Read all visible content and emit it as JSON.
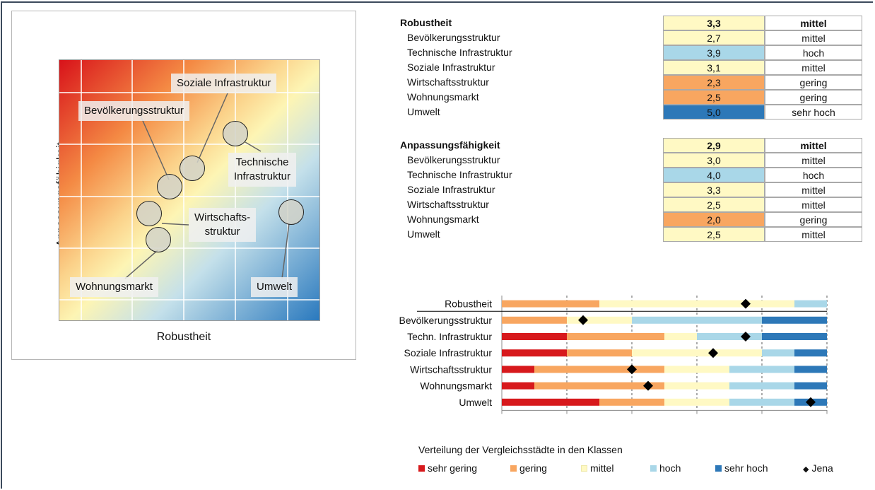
{
  "colors": {
    "sehr_gering": "#d7191c",
    "gering": "#f8a660",
    "mittel": "#fff9c4",
    "hoch": "#a9d7e8",
    "sehr_hoch": "#2d78b8",
    "jena": "#000000"
  },
  "matrix": {
    "xlabel": "Robustheit",
    "ylabel": "Anpassungsfähigkeit",
    "labels": {
      "soziale": "Soziale Infrastruktur",
      "bevoelkerung": "Bevölkerungsstruktur",
      "technische_1": "Technische",
      "technische_2": "Infrastruktur",
      "wirtschaft_1": "Wirtschafts-",
      "wirtschaft_2": "struktur",
      "wohnungsmarkt": "Wohnungsmarkt",
      "umwelt": "Umwelt"
    }
  },
  "table": {
    "robustheit": {
      "title": "Robustheit",
      "value": "3,3",
      "class": "mittel",
      "rows": [
        {
          "label": "Bevölkerungsstruktur",
          "value": "2,7",
          "class": "mittel",
          "color": "#fff9c4"
        },
        {
          "label": "Technische Infrastruktur",
          "value": "3,9",
          "class": "hoch",
          "color": "#a9d7e8"
        },
        {
          "label": "Soziale Infrastruktur",
          "value": "3,1",
          "class": "mittel",
          "color": "#fff9c4"
        },
        {
          "label": "Wirtschaftsstruktur",
          "value": "2,3",
          "class": "gering",
          "color": "#f8a660"
        },
        {
          "label": "Wohnungsmarkt",
          "value": "2,5",
          "class": "gering",
          "color": "#f8a660"
        },
        {
          "label": "Umwelt",
          "value": "5,0",
          "class": "sehr hoch",
          "color": "#2d78b8"
        }
      ]
    },
    "anpassung": {
      "title": "Anpassungsfähigkeit",
      "value": "2,9",
      "class": "mittel",
      "rows": [
        {
          "label": "Bevölkerungsstruktur",
          "value": "3,0",
          "class": "mittel",
          "color": "#fff9c4"
        },
        {
          "label": "Technische Infrastruktur",
          "value": "4,0",
          "class": "hoch",
          "color": "#a9d7e8"
        },
        {
          "label": "Soziale Infrastruktur",
          "value": "3,3",
          "class": "mittel",
          "color": "#fff9c4"
        },
        {
          "label": "Wirtschaftsstruktur",
          "value": "2,5",
          "class": "mittel",
          "color": "#fff9c4"
        },
        {
          "label": "Wohnungsmarkt",
          "value": "2,0",
          "class": "gering",
          "color": "#f8a660"
        },
        {
          "label": "Umwelt",
          "value": "2,5",
          "class": "mittel",
          "color": "#fff9c4"
        }
      ]
    }
  },
  "chart_data": {
    "type": "bar",
    "stacked": true,
    "orientation": "horizontal",
    "title": "Verteilung der Vergleichsstädte in den Klassen",
    "categories": [
      "Robustheit",
      "Bevölkerungsstruktur",
      "Techn. Infrastruktur",
      "Soziale Infrastruktur",
      "Wirtschaftsstruktur",
      "Wohnungsmarkt",
      "Umwelt"
    ],
    "xlim": [
      0,
      100
    ],
    "series": [
      {
        "name": "sehr gering",
        "values": [
          0,
          0,
          20,
          20,
          10,
          10,
          30
        ]
      },
      {
        "name": "gering",
        "values": [
          30,
          20,
          30,
          20,
          40,
          40,
          20
        ]
      },
      {
        "name": "mittel",
        "values": [
          60,
          20,
          10,
          40,
          20,
          20,
          20
        ]
      },
      {
        "name": "hoch",
        "values": [
          10,
          40,
          20,
          10,
          20,
          20,
          20
        ]
      },
      {
        "name": "sehr hoch",
        "values": [
          0,
          20,
          20,
          10,
          10,
          10,
          10
        ]
      }
    ],
    "markers": {
      "name": "Jena",
      "values": [
        75,
        25,
        75,
        65,
        40,
        45,
        95
      ]
    },
    "legend": [
      "sehr gering",
      "gering",
      "mittel",
      "hoch",
      "sehr hoch",
      "Jena"
    ],
    "legend_position": "bottom",
    "grid": true
  }
}
